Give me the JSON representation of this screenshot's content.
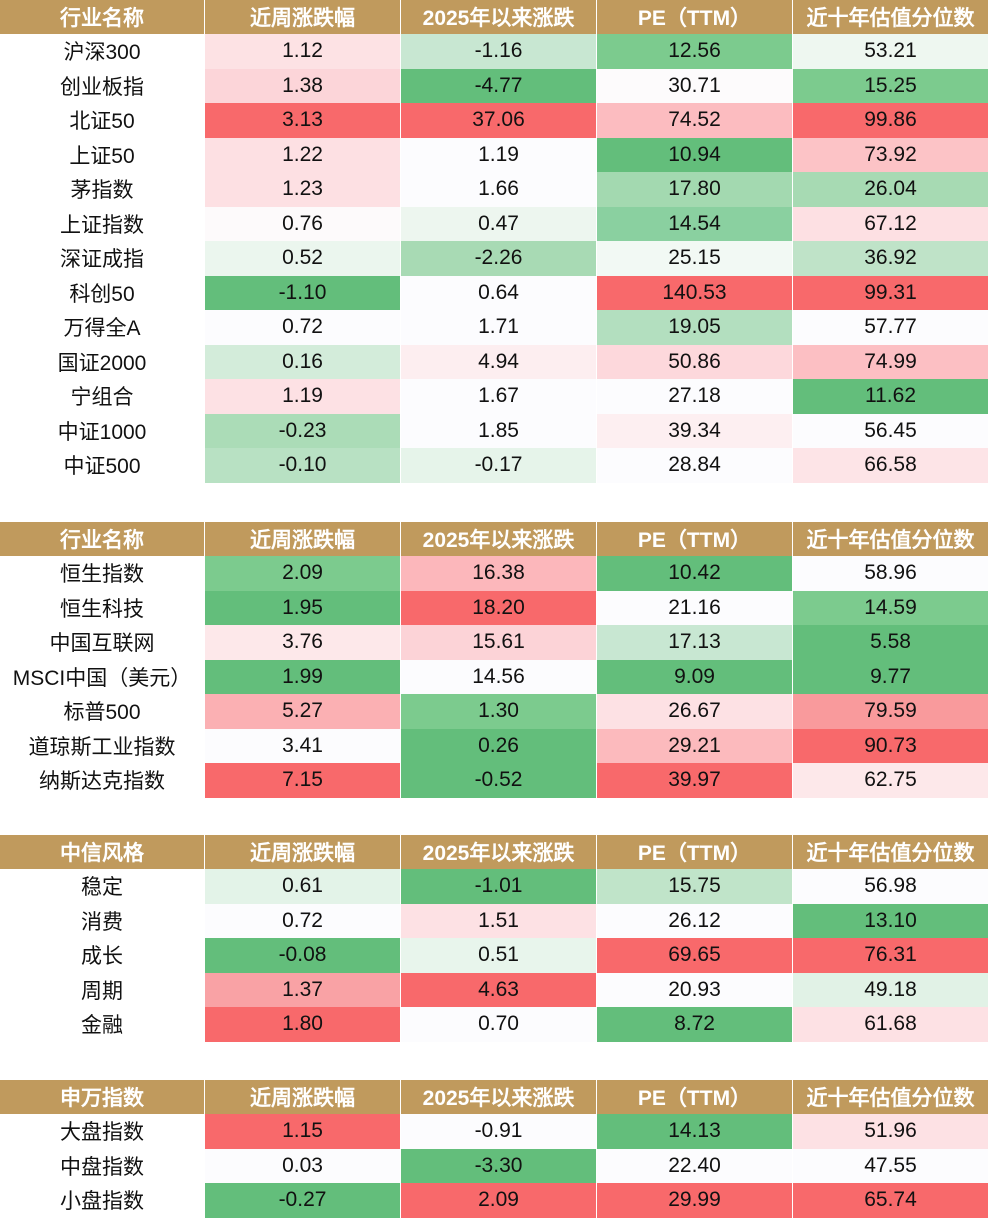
{
  "tables": [
    {
      "headers": [
        "行业名称",
        "近周涨跌幅",
        "2025年以来涨跌",
        "PE（TTM）",
        "近十年估值分位数"
      ],
      "rows": [
        {
          "cells": [
            "沪深300",
            "1.12",
            "-1.16",
            "12.56",
            "53.21"
          ],
          "colors": [
            "#ffffff",
            "#fde2e4",
            "#c8e7d2",
            "#7ccb8e",
            "#eef7f0"
          ]
        },
        {
          "cells": [
            "创业板指",
            "1.38",
            "-4.77",
            "30.71",
            "15.25"
          ],
          "colors": [
            "#ffffff",
            "#fcd5d9",
            "#63be7b",
            "#fdfbfc",
            "#7ccb8e"
          ]
        },
        {
          "cells": [
            "北证50",
            "3.13",
            "37.06",
            "74.52",
            "99.86"
          ],
          "colors": [
            "#ffffff",
            "#f8696b",
            "#f8696b",
            "#fcbcc0",
            "#f8696b"
          ]
        },
        {
          "cells": [
            "上证50",
            "1.22",
            "1.19",
            "10.94",
            "73.92"
          ],
          "colors": [
            "#ffffff",
            "#fde0e3",
            "#fcfcfe",
            "#63be7b",
            "#fcc3c6"
          ]
        },
        {
          "cells": [
            "茅指数",
            "1.23",
            "1.66",
            "17.80",
            "26.04"
          ],
          "colors": [
            "#ffffff",
            "#fde0e3",
            "#fcfcfe",
            "#a3d9b0",
            "#a7dab3"
          ]
        },
        {
          "cells": [
            "上证指数",
            "0.76",
            "0.47",
            "14.54",
            "67.12"
          ],
          "colors": [
            "#ffffff",
            "#fdfafb",
            "#edf6ef",
            "#8ad0a0",
            "#fde0e3"
          ]
        },
        {
          "cells": [
            "深证成指",
            "0.52",
            "-2.26",
            "25.15",
            "36.92"
          ],
          "colors": [
            "#ffffff",
            "#ebf6ee",
            "#a8dab4",
            "#f2f9f4",
            "#bfe3c8"
          ]
        },
        {
          "cells": [
            "科创50",
            "-1.10",
            "0.64",
            "140.53",
            "99.31"
          ],
          "colors": [
            "#ffffff",
            "#63be7b",
            "#fcfcfe",
            "#f8696b",
            "#f8696b"
          ]
        },
        {
          "cells": [
            "万得全A",
            "0.72",
            "1.71",
            "19.05",
            "57.77"
          ],
          "colors": [
            "#ffffff",
            "#fcfcfe",
            "#fcfcfe",
            "#b3dfbf",
            "#fcfcfe"
          ]
        },
        {
          "cells": [
            "国证2000",
            "0.16",
            "4.94",
            "50.86",
            "74.99"
          ],
          "colors": [
            "#ffffff",
            "#d3ecda",
            "#fdeef0",
            "#fdd8dc",
            "#fcbfc3"
          ]
        },
        {
          "cells": [
            "宁组合",
            "1.19",
            "1.67",
            "27.18",
            "11.62"
          ],
          "colors": [
            "#ffffff",
            "#fde1e4",
            "#fcfcfe",
            "#fcfcfe",
            "#63be7b"
          ]
        },
        {
          "cells": [
            "中证1000",
            "-0.23",
            "1.85",
            "39.34",
            "56.45"
          ],
          "colors": [
            "#ffffff",
            "#abdcb7",
            "#fcfcfe",
            "#fdeff1",
            "#fcfcfe"
          ]
        },
        {
          "cells": [
            "中证500",
            "-0.10",
            "-0.17",
            "28.84",
            "66.58"
          ],
          "colors": [
            "#ffffff",
            "#b8e1c3",
            "#e6f4ea",
            "#fcfcfe",
            "#fde4e7"
          ]
        }
      ]
    },
    {
      "headers": [
        "行业名称",
        "近周涨跌幅",
        "2025年以来涨跌",
        "PE（TTM）",
        "近十年估值分位数"
      ],
      "rows": [
        {
          "cells": [
            "恒生指数",
            "2.09",
            "16.38",
            "10.42",
            "58.96"
          ],
          "colors": [
            "#ffffff",
            "#7ccb8e",
            "#fcb7bb",
            "#63be7b",
            "#fcfcfe"
          ]
        },
        {
          "cells": [
            "恒生科技",
            "1.95",
            "18.20",
            "21.16",
            "14.59"
          ],
          "colors": [
            "#ffffff",
            "#63be7b",
            "#f8696b",
            "#fcfcfe",
            "#7ccb8e"
          ]
        },
        {
          "cells": [
            "中国互联网",
            "3.76",
            "15.61",
            "17.13",
            "5.58"
          ],
          "colors": [
            "#ffffff",
            "#fde8ea",
            "#fcd3d7",
            "#c8e7d2",
            "#63be7b"
          ]
        },
        {
          "cells": [
            "MSCI中国（美元）",
            "1.99",
            "14.56",
            "9.09",
            "9.77"
          ],
          "colors": [
            "#ffffff",
            "#63be7b",
            "#fcfcfe",
            "#63be7b",
            "#63be7b"
          ]
        },
        {
          "cells": [
            "标普500",
            "5.27",
            "1.30",
            "26.67",
            "79.59"
          ],
          "colors": [
            "#ffffff",
            "#fbb0b3",
            "#7ccb8e",
            "#fde1e4",
            "#f99a9c"
          ]
        },
        {
          "cells": [
            "道琼斯工业指数",
            "3.41",
            "0.26",
            "29.21",
            "90.73"
          ],
          "colors": [
            "#ffffff",
            "#fcfcfe",
            "#63be7b",
            "#fcbabd",
            "#f8696b"
          ]
        },
        {
          "cells": [
            "纳斯达克指数",
            "7.15",
            "-0.52",
            "39.97",
            "62.75"
          ],
          "colors": [
            "#ffffff",
            "#f8696b",
            "#63be7b",
            "#f8696b",
            "#fde8ea"
          ]
        }
      ]
    },
    {
      "headers": [
        "中信风格",
        "近周涨跌幅",
        "2025年以来涨跌",
        "PE（TTM）",
        "近十年估值分位数"
      ],
      "rows": [
        {
          "cells": [
            "稳定",
            "0.61",
            "-1.01",
            "15.75",
            "56.98"
          ],
          "colors": [
            "#ffffff",
            "#e3f3e8",
            "#63be7b",
            "#c0e4c9",
            "#fcfcfe"
          ]
        },
        {
          "cells": [
            "消费",
            "0.72",
            "1.51",
            "26.12",
            "13.10"
          ],
          "colors": [
            "#ffffff",
            "#fcfcfe",
            "#fde1e4",
            "#fcfcfe",
            "#63be7b"
          ]
        },
        {
          "cells": [
            "成长",
            "-0.08",
            "0.51",
            "69.65",
            "76.31"
          ],
          "colors": [
            "#ffffff",
            "#63be7b",
            "#e8f5ec",
            "#f8696b",
            "#f8696b"
          ]
        },
        {
          "cells": [
            "周期",
            "1.37",
            "4.63",
            "20.93",
            "49.18"
          ],
          "colors": [
            "#ffffff",
            "#f9a2a5",
            "#f8696b",
            "#fcfcfe",
            "#e1f2e6"
          ]
        },
        {
          "cells": [
            "金融",
            "1.80",
            "0.70",
            "8.72",
            "61.68"
          ],
          "colors": [
            "#ffffff",
            "#f8696b",
            "#fcfcfe",
            "#63be7b",
            "#fde1e4"
          ]
        }
      ]
    },
    {
      "headers": [
        "申万指数",
        "近周涨跌幅",
        "2025年以来涨跌",
        "PE（TTM）",
        "近十年估值分位数"
      ],
      "rows": [
        {
          "cells": [
            "大盘指数",
            "1.15",
            "-0.91",
            "14.13",
            "51.96"
          ],
          "colors": [
            "#ffffff",
            "#f8696b",
            "#fcfcfe",
            "#63be7b",
            "#fde1e4"
          ]
        },
        {
          "cells": [
            "中盘指数",
            "0.03",
            "-3.30",
            "22.40",
            "47.55"
          ],
          "colors": [
            "#ffffff",
            "#fcfcfe",
            "#63be7b",
            "#fcfcfe",
            "#fcfcfe"
          ]
        },
        {
          "cells": [
            "小盘指数",
            "-0.27",
            "2.09",
            "29.99",
            "65.74"
          ],
          "colors": [
            "#ffffff",
            "#63be7b",
            "#f8696b",
            "#f8696b",
            "#f8696b"
          ]
        }
      ]
    }
  ]
}
